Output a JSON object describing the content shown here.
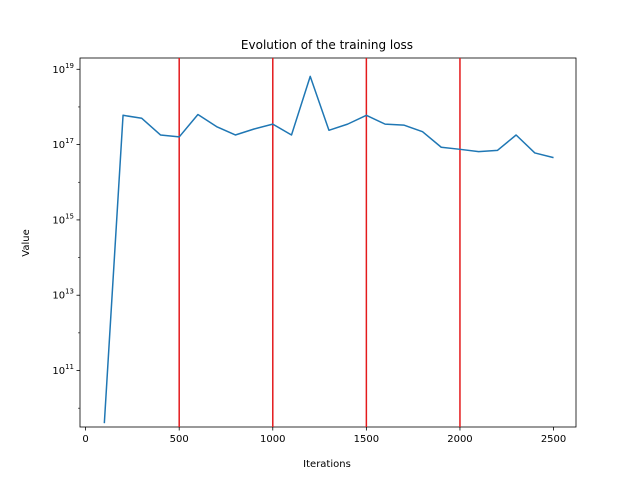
{
  "chart_data": {
    "type": "line",
    "title": "Evolution of the training loss",
    "xlabel": "Iterations",
    "ylabel": "Value",
    "y_scale": "log",
    "xlim": [
      -30,
      2620
    ],
    "ylim_log10": [
      9.5,
      19.3
    ],
    "x_ticks": [
      0,
      500,
      1000,
      1500,
      2000,
      2500
    ],
    "x_tick_labels": [
      "0",
      "500",
      "1000",
      "1500",
      "2000",
      "2500"
    ],
    "y_ticks_log10": [
      11,
      13,
      15,
      17,
      19
    ],
    "y_tick_labels": [
      {
        "base": "10",
        "exp": "11"
      },
      {
        "base": "10",
        "exp": "13"
      },
      {
        "base": "10",
        "exp": "15"
      },
      {
        "base": "10",
        "exp": "17"
      },
      {
        "base": "10",
        "exp": "19"
      }
    ],
    "vlines": [
      500,
      1000,
      1500,
      2000
    ],
    "vline_color": "#e41a1c",
    "line_color": "#1f77b4",
    "series": [
      {
        "x": [
          100,
          200,
          300,
          400,
          500,
          600,
          700,
          800,
          900,
          1000,
          1100,
          1200,
          1300,
          1400,
          1500,
          1600,
          1700,
          1800,
          1900,
          2000,
          2100,
          2200,
          2300,
          2400,
          2500
        ],
        "y": [
          4000000000.0,
          6e+17,
          5e+17,
          1.8e+17,
          1.6e+17,
          6.3e+17,
          3e+17,
          1.8e+17,
          2.6e+17,
          3.5e+17,
          1.8e+17,
          6.5e+18,
          2.4e+17,
          3.5e+17,
          6e+17,
          3.5e+17,
          3.3e+17,
          2.2e+17,
          8.5e+16,
          7.5e+16,
          6.5e+16,
          7e+16,
          1.8e+17,
          6e+16,
          4.5e+16
        ]
      }
    ]
  }
}
